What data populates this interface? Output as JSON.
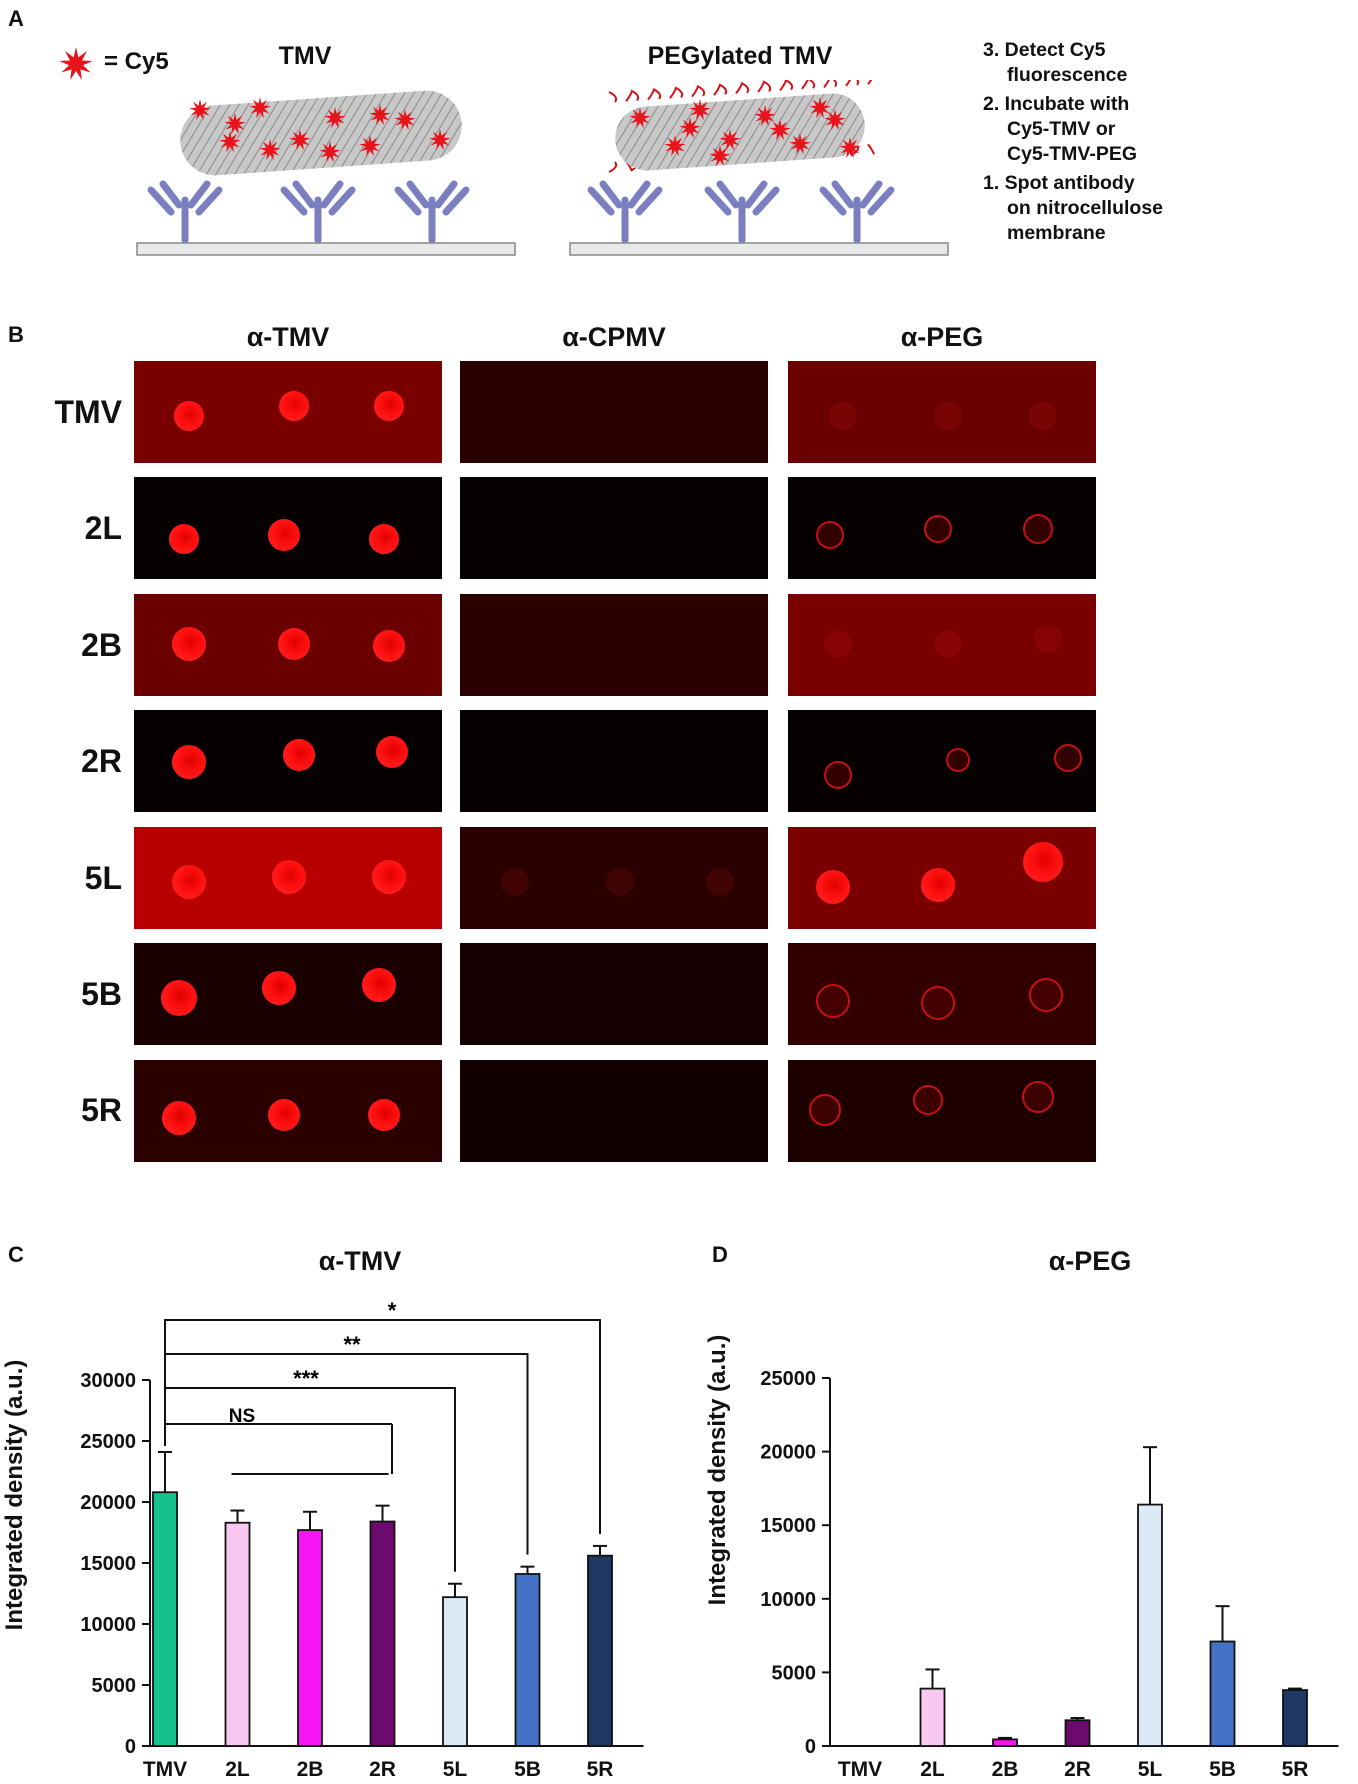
{
  "panel_a": {
    "letter": "A",
    "legend_label": "= Cy5",
    "tmv_label": "TMV",
    "peg_label": "PEGylated TMV",
    "steps": [
      {
        "line1": "3. Detect Cy5",
        "line2": "fluorescence",
        "line3": ""
      },
      {
        "line1": "2. Incubate with",
        "line2": "Cy5-TMV or",
        "line3": "Cy5-TMV-PEG"
      },
      {
        "line1": "1. Spot antibody",
        "line2": "on nitrocellulose",
        "line3": "membrane"
      }
    ],
    "colors": {
      "cy5": "#e8141b",
      "antibody": "#7b7fbf",
      "rod": "#bdbdbd",
      "peg": "#d4141b",
      "membrane": "#e9e9e9"
    }
  },
  "panel_b": {
    "letter": "B",
    "columns": [
      "α-TMV",
      "α-CPMV",
      "α-PEG"
    ],
    "rows": [
      "TMV",
      "2L",
      "2B",
      "2R",
      "5L",
      "5B",
      "5R"
    ]
  },
  "panel_c": {
    "letter": "C",
    "annotations": {
      "star1": "*",
      "star2": "**",
      "star3": "***",
      "ns": "NS"
    }
  },
  "panel_d": {
    "letter": "D"
  },
  "chart_data": [
    {
      "type": "bar",
      "title": "α-TMV",
      "ylabel": "Integrated density (a.u.)",
      "categories": [
        "TMV",
        "2L",
        "2B",
        "2R",
        "5L",
        "5B",
        "5R"
      ],
      "values": [
        20800,
        18300,
        17700,
        18400,
        12200,
        14100,
        15600
      ],
      "errors": [
        3300,
        1000,
        1500,
        1300,
        1100,
        600,
        800
      ],
      "colors": [
        "#14c08c",
        "#f8c8f2",
        "#f715f4",
        "#6d0a6e",
        "#dde9f6",
        "#4472c4",
        "#1f3864"
      ],
      "ylim": [
        0,
        30000
      ],
      "yticks": [
        0,
        5000,
        10000,
        15000,
        20000,
        25000,
        30000
      ],
      "ytick_labels": [
        "0",
        "5000",
        "10000",
        "15000",
        "20000",
        "25000",
        "30000"
      ]
    },
    {
      "type": "bar",
      "title": "α-PEG",
      "ylabel": "Integrated density (a.u.)",
      "categories": [
        "TMV",
        "2L",
        "2B",
        "2R",
        "5L",
        "5B",
        "5R"
      ],
      "values": [
        0,
        3900,
        450,
        1750,
        16400,
        7100,
        3800
      ],
      "errors": [
        0,
        1300,
        100,
        150,
        3900,
        2400,
        100
      ],
      "colors": [
        "#14c08c",
        "#f8c8f2",
        "#f715f4",
        "#6d0a6e",
        "#dde9f6",
        "#4472c4",
        "#1f3864"
      ],
      "ylim": [
        0,
        25000
      ],
      "yticks": [
        0,
        5000,
        10000,
        15000,
        20000,
        25000
      ],
      "ytick_labels": [
        "0",
        "5000",
        "10000",
        "15000",
        "20000",
        "25000"
      ]
    }
  ]
}
